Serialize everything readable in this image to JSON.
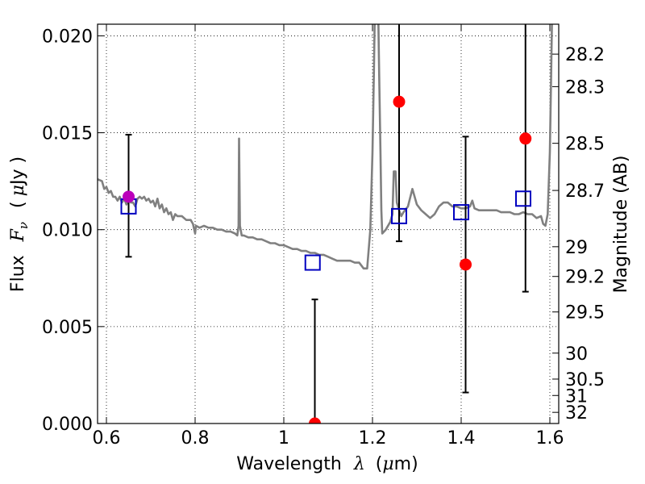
{
  "chart_data": {
    "type": "scatter",
    "xlabel": {
      "prefix": "Wavelength",
      "symbol": "λ",
      "unit_open": "(",
      "unit_mu": "μ",
      "unit_rest": "m)"
    },
    "ylabel": {
      "prefix": "Flux",
      "symbol": "F",
      "sub": "ν",
      "unit_open": "(",
      "unit_mu": "μ",
      "unit_rest": "Jy )"
    },
    "y2label": "Magnitude (AB)",
    "xlim": [
      0.58,
      1.62
    ],
    "ylim": [
      0.0,
      0.0206
    ],
    "x_ticks": [
      {
        "value": 0.6,
        "label": "0.6"
      },
      {
        "value": 0.8,
        "label": "0.8"
      },
      {
        "value": 1.0,
        "label": "1"
      },
      {
        "value": 1.2,
        "label": "1.2"
      },
      {
        "value": 1.4,
        "label": "1.4"
      },
      {
        "value": 1.6,
        "label": "1.6"
      }
    ],
    "y_ticks": [
      {
        "value": 0.0,
        "label": "0.000"
      },
      {
        "value": 0.005,
        "label": "0.005"
      },
      {
        "value": 0.01,
        "label": "0.010"
      },
      {
        "value": 0.015,
        "label": "0.015"
      },
      {
        "value": 0.02,
        "label": "0.020"
      }
    ],
    "mag_ticks": [
      {
        "value": 28.2,
        "label": "28.2"
      },
      {
        "value": 28.3,
        "label": "28.3"
      },
      {
        "value": 28.5,
        "label": "28.5"
      },
      {
        "value": 28.7,
        "label": "28.7"
      },
      {
        "value": 29.0,
        "label": "29"
      },
      {
        "value": 29.2,
        "label": "29.2"
      },
      {
        "value": 29.5,
        "label": "29.5"
      },
      {
        "value": 30.0,
        "label": "30"
      },
      {
        "value": 30.5,
        "label": "30.5"
      },
      {
        "value": 31.0,
        "label": "31"
      },
      {
        "value": 32.0,
        "label": "32"
      }
    ],
    "grid": true,
    "model_spectrum": {
      "color": "#808080",
      "points": [
        [
          0.58,
          0.0126
        ],
        [
          0.59,
          0.0125
        ],
        [
          0.595,
          0.0121
        ],
        [
          0.6,
          0.0122
        ],
        [
          0.605,
          0.0119
        ],
        [
          0.61,
          0.012
        ],
        [
          0.615,
          0.0117
        ],
        [
          0.62,
          0.0117
        ],
        [
          0.625,
          0.0115
        ],
        [
          0.63,
          0.0117
        ],
        [
          0.635,
          0.0114
        ],
        [
          0.64,
          0.0116
        ],
        [
          0.645,
          0.0113
        ],
        [
          0.65,
          0.0116
        ],
        [
          0.655,
          0.0114
        ],
        [
          0.66,
          0.0114
        ],
        [
          0.665,
          0.0112
        ],
        [
          0.67,
          0.0116
        ],
        [
          0.675,
          0.0117
        ],
        [
          0.68,
          0.0116
        ],
        [
          0.685,
          0.0117
        ],
        [
          0.69,
          0.0115
        ],
        [
          0.695,
          0.0116
        ],
        [
          0.7,
          0.0114
        ],
        [
          0.705,
          0.0115
        ],
        [
          0.71,
          0.0112
        ],
        [
          0.715,
          0.0116
        ],
        [
          0.72,
          0.0111
        ],
        [
          0.725,
          0.0113
        ],
        [
          0.73,
          0.0109
        ],
        [
          0.735,
          0.0111
        ],
        [
          0.74,
          0.0108
        ],
        [
          0.745,
          0.0109
        ],
        [
          0.75,
          0.0105
        ],
        [
          0.755,
          0.0108
        ],
        [
          0.76,
          0.0107
        ],
        [
          0.77,
          0.0107
        ],
        [
          0.78,
          0.0105
        ],
        [
          0.79,
          0.0105
        ],
        [
          0.795,
          0.0103
        ],
        [
          0.8,
          0.0098
        ],
        [
          0.802,
          0.0102
        ],
        [
          0.81,
          0.0101
        ],
        [
          0.82,
          0.0102
        ],
        [
          0.83,
          0.0101
        ],
        [
          0.84,
          0.0101
        ],
        [
          0.85,
          0.01
        ],
        [
          0.86,
          0.01
        ],
        [
          0.87,
          0.0099
        ],
        [
          0.88,
          0.0099
        ],
        [
          0.89,
          0.0098
        ],
        [
          0.895,
          0.0097
        ],
        [
          0.898,
          0.0102
        ],
        [
          0.899,
          0.0147
        ],
        [
          0.901,
          0.0102
        ],
        [
          0.905,
          0.0097
        ],
        [
          0.91,
          0.0097
        ],
        [
          0.92,
          0.0096
        ],
        [
          0.93,
          0.0096
        ],
        [
          0.94,
          0.0095
        ],
        [
          0.95,
          0.0095
        ],
        [
          0.96,
          0.0094
        ],
        [
          0.97,
          0.0093
        ],
        [
          0.98,
          0.0093
        ],
        [
          0.99,
          0.0092
        ],
        [
          1.0,
          0.0092
        ],
        [
          1.01,
          0.0091
        ],
        [
          1.02,
          0.009
        ],
        [
          1.03,
          0.009
        ],
        [
          1.04,
          0.0089
        ],
        [
          1.05,
          0.0089
        ],
        [
          1.06,
          0.0088
        ],
        [
          1.07,
          0.0088
        ],
        [
          1.08,
          0.0087
        ],
        [
          1.09,
          0.0087
        ],
        [
          1.1,
          0.0086
        ],
        [
          1.11,
          0.0085
        ],
        [
          1.12,
          0.0084
        ],
        [
          1.13,
          0.0084
        ],
        [
          1.14,
          0.0084
        ],
        [
          1.15,
          0.0084
        ],
        [
          1.16,
          0.0083
        ],
        [
          1.17,
          0.0083
        ],
        [
          1.18,
          0.008
        ],
        [
          1.188,
          0.008
        ],
        [
          1.195,
          0.01
        ],
        [
          1.2,
          0.014
        ],
        [
          1.203,
          0.018
        ],
        [
          1.205,
          0.021
        ],
        [
          1.213,
          0.021
        ],
        [
          1.215,
          0.018
        ],
        [
          1.218,
          0.014
        ],
        [
          1.22,
          0.011
        ],
        [
          1.222,
          0.0098
        ],
        [
          1.23,
          0.01
        ],
        [
          1.24,
          0.0104
        ],
        [
          1.245,
          0.0108
        ],
        [
          1.248,
          0.013
        ],
        [
          1.252,
          0.013
        ],
        [
          1.255,
          0.0114
        ],
        [
          1.26,
          0.011
        ],
        [
          1.265,
          0.0107
        ],
        [
          1.27,
          0.0109
        ],
        [
          1.28,
          0.0112
        ],
        [
          1.29,
          0.0121
        ],
        [
          1.3,
          0.0113
        ],
        [
          1.31,
          0.011
        ],
        [
          1.32,
          0.0108
        ],
        [
          1.33,
          0.0106
        ],
        [
          1.34,
          0.0108
        ],
        [
          1.35,
          0.0112
        ],
        [
          1.36,
          0.0114
        ],
        [
          1.37,
          0.0114
        ],
        [
          1.38,
          0.0112
        ],
        [
          1.39,
          0.0112
        ],
        [
          1.4,
          0.0111
        ],
        [
          1.41,
          0.0111
        ],
        [
          1.42,
          0.0112
        ],
        [
          1.425,
          0.0115
        ],
        [
          1.43,
          0.0111
        ],
        [
          1.44,
          0.011
        ],
        [
          1.45,
          0.011
        ],
        [
          1.46,
          0.011
        ],
        [
          1.47,
          0.011
        ],
        [
          1.48,
          0.011
        ],
        [
          1.49,
          0.0109
        ],
        [
          1.5,
          0.0109
        ],
        [
          1.51,
          0.0109
        ],
        [
          1.52,
          0.0108
        ],
        [
          1.53,
          0.0108
        ],
        [
          1.54,
          0.0109
        ],
        [
          1.55,
          0.0108
        ],
        [
          1.56,
          0.0108
        ],
        [
          1.57,
          0.0106
        ],
        [
          1.58,
          0.0107
        ],
        [
          1.585,
          0.0103
        ],
        [
          1.59,
          0.0102
        ],
        [
          1.595,
          0.0108
        ],
        [
          1.6,
          0.014
        ],
        [
          1.603,
          0.018
        ],
        [
          1.605,
          0.021
        ]
      ]
    },
    "error_bars": [
      {
        "x": 0.65,
        "y_low": 0.0086,
        "y_high": 0.0149
      },
      {
        "x": 1.07,
        "y_low": 0.0,
        "y_high": 0.0064
      },
      {
        "x": 1.26,
        "y_low": 0.0094,
        "y_high": 0.021
      },
      {
        "x": 1.41,
        "y_low": 0.0016,
        "y_high": 0.0148
      },
      {
        "x": 1.545,
        "y_low": 0.0068,
        "y_high": 0.021
      }
    ],
    "model_photometry": {
      "color": "#0000c0",
      "marker": "square",
      "points": [
        {
          "x": 0.65,
          "y": 0.0112
        },
        {
          "x": 1.065,
          "y": 0.0083
        },
        {
          "x": 1.26,
          "y": 0.0107
        },
        {
          "x": 1.4,
          "y": 0.0109
        },
        {
          "x": 1.54,
          "y": 0.0116
        }
      ]
    },
    "observed_photometry": {
      "color": "#ff0000",
      "marker": "circle",
      "points": [
        {
          "x": 0.65,
          "y": 0.0117,
          "color": "#bb00bb"
        },
        {
          "x": 1.07,
          "y": 0.0
        },
        {
          "x": 1.26,
          "y": 0.0166
        },
        {
          "x": 1.41,
          "y": 0.0082
        },
        {
          "x": 1.545,
          "y": 0.0147
        }
      ]
    }
  }
}
